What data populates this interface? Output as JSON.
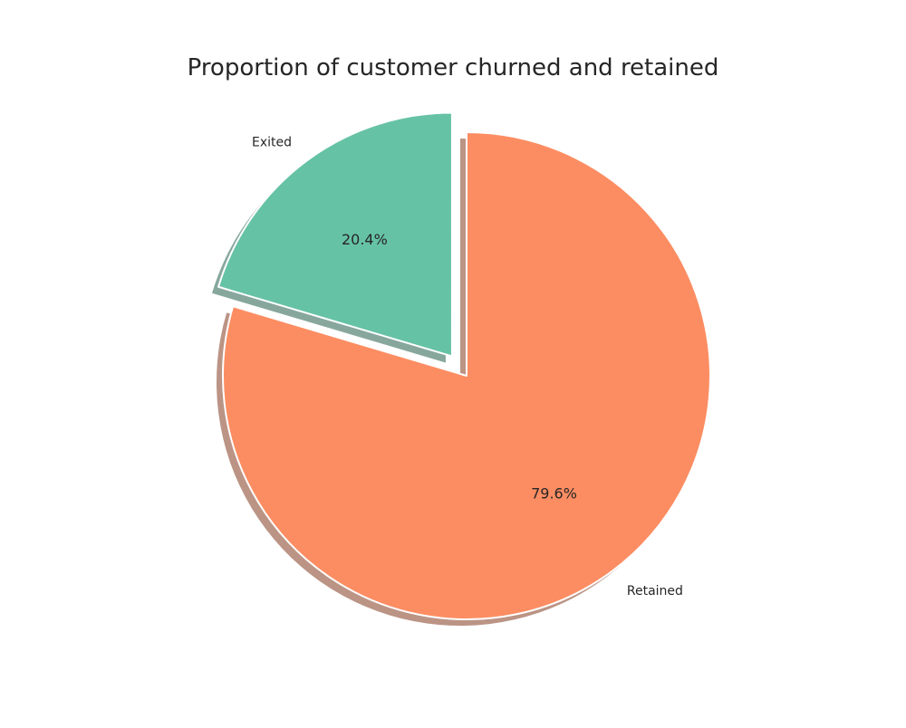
{
  "chart_data": {
    "type": "pie",
    "title": "Proportion of customer churned and retained",
    "labels": [
      "Exited",
      "Retained"
    ],
    "values": [
      20.4,
      79.6
    ],
    "value_labels": [
      "20.4%",
      "79.6%"
    ],
    "colors": [
      "#66c2a5",
      "#fc8d62"
    ],
    "explode": [
      0.1,
      0
    ],
    "shadow": true,
    "start_angle_deg": 90,
    "legend": "none"
  }
}
